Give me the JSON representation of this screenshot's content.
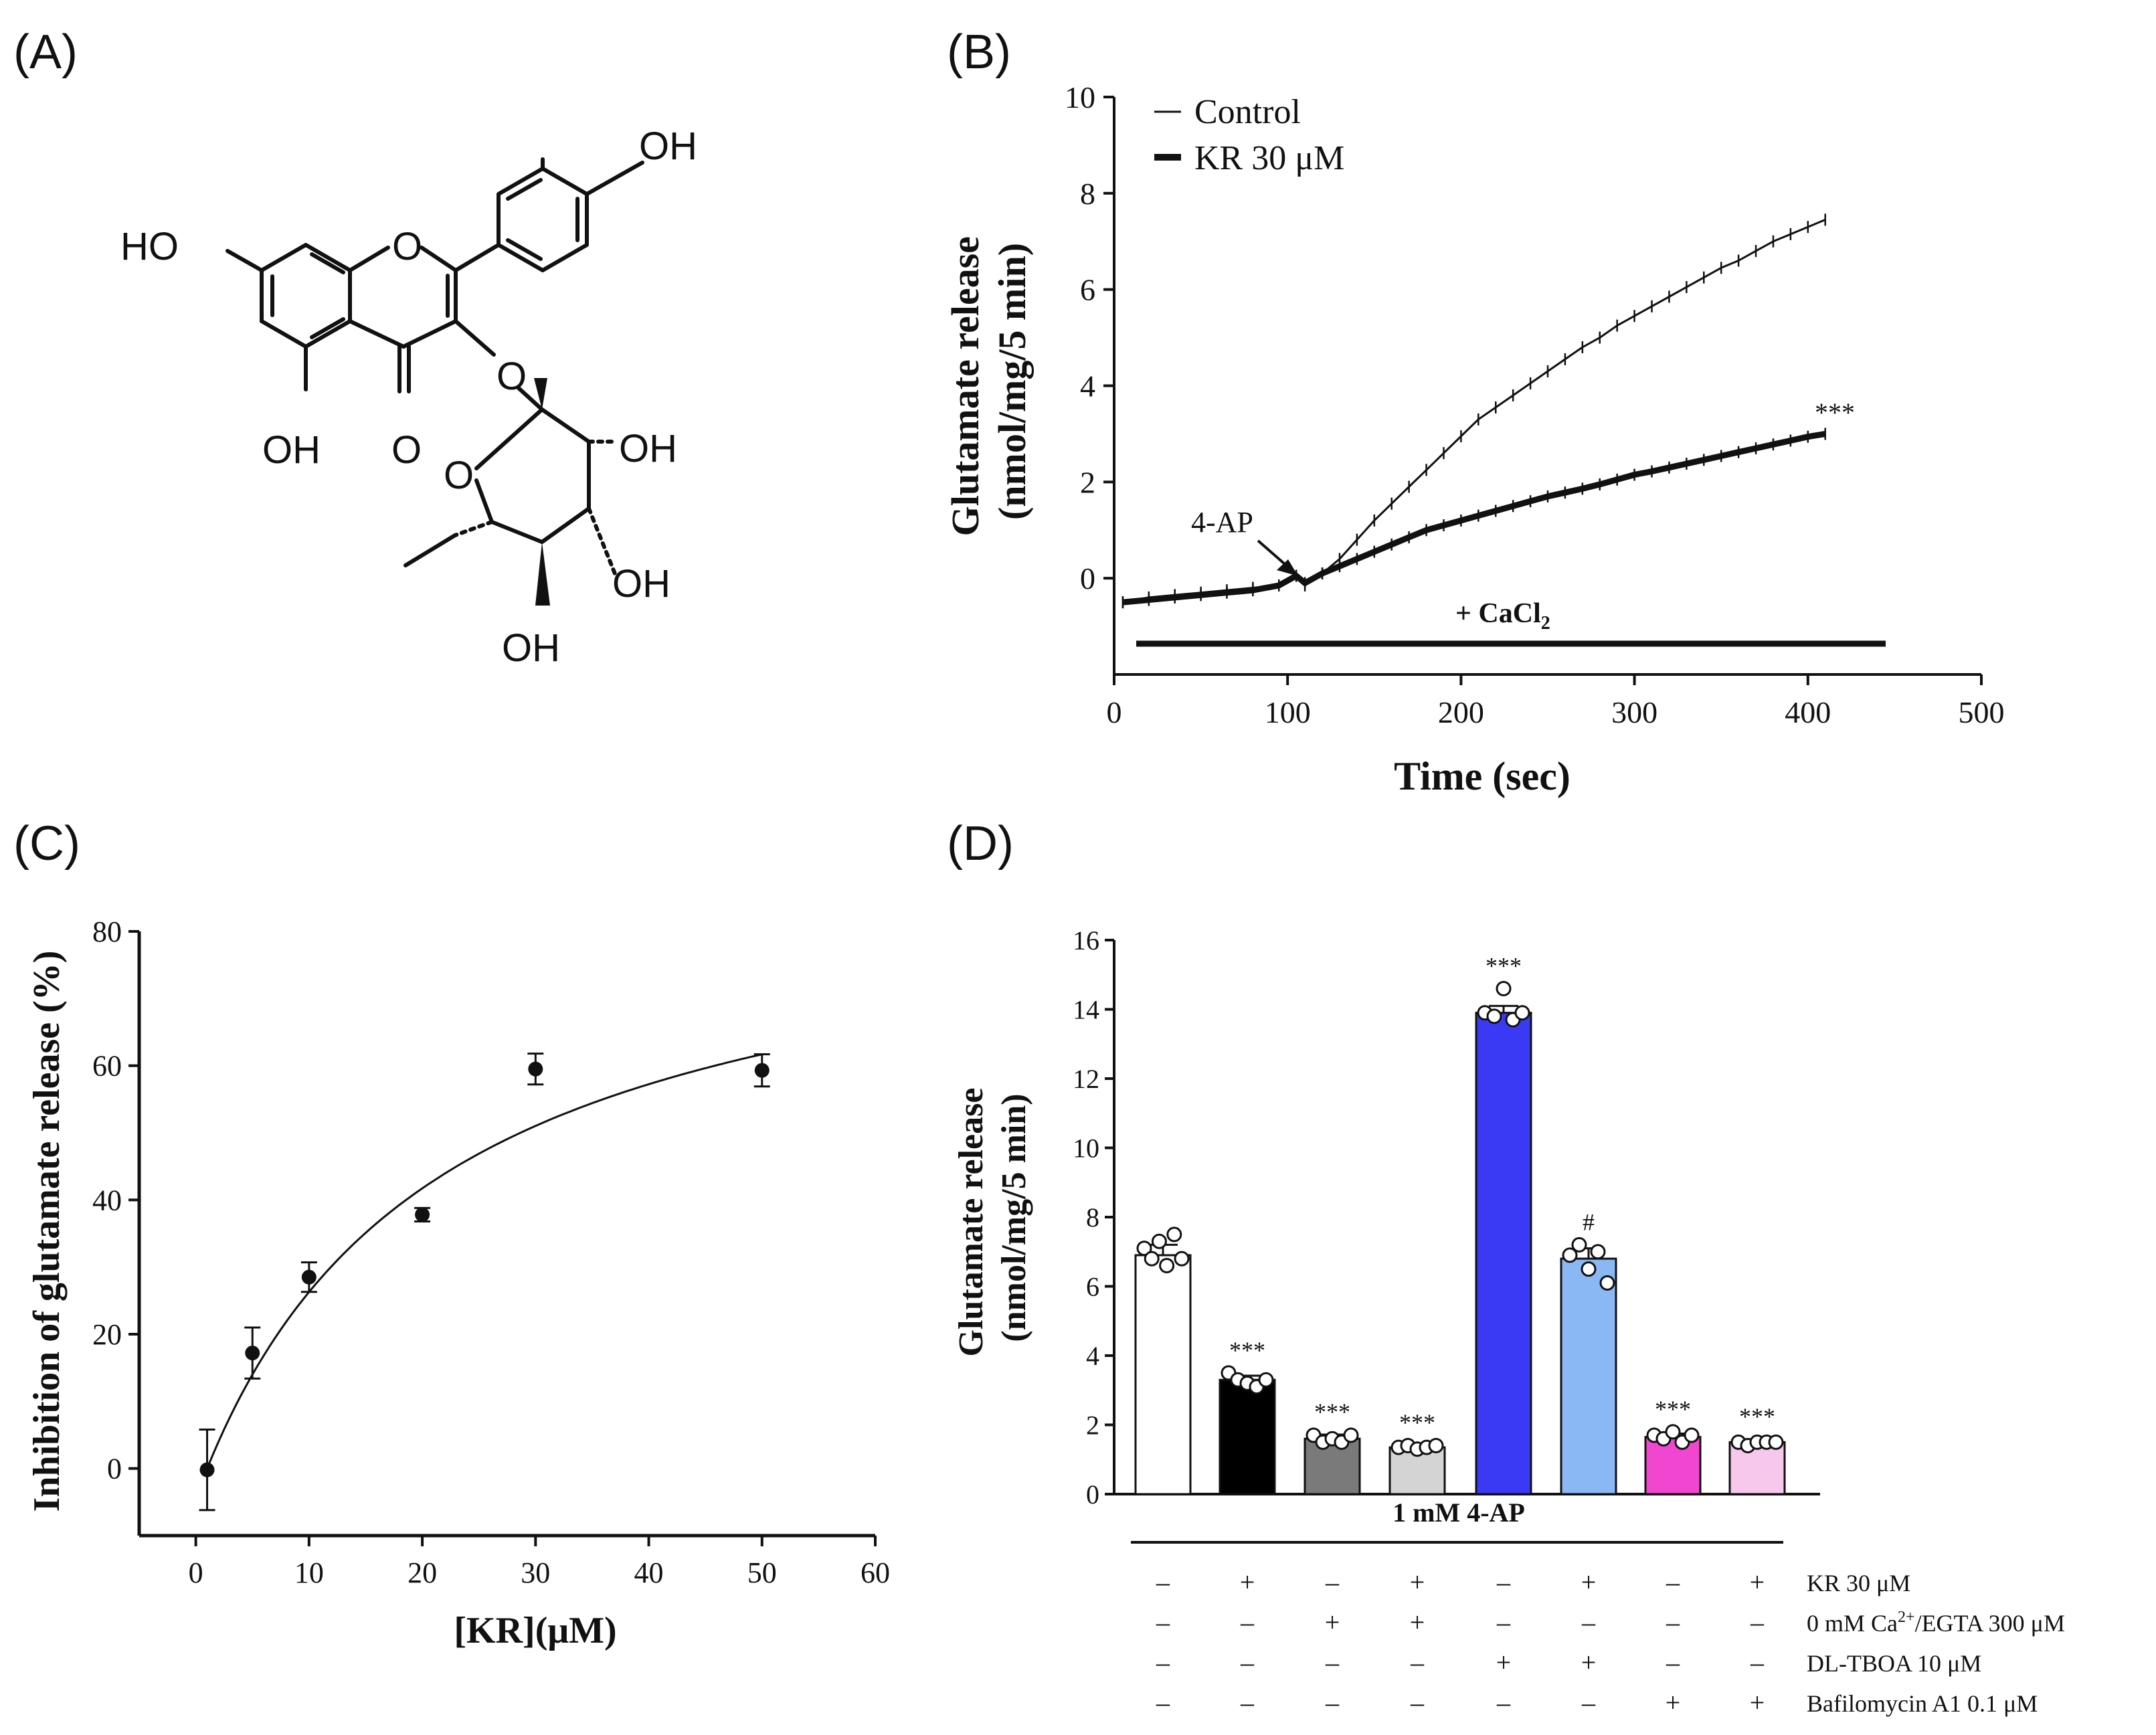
{
  "panels": {
    "a": "(A)",
    "b": "(B)",
    "c": "(C)",
    "d": "(D)"
  },
  "structure": {
    "atom_labels": [
      "OH",
      "HO",
      "O",
      "O",
      "O",
      "OH",
      "O",
      "OH",
      "OH",
      "OH"
    ]
  },
  "chart_data": [
    {
      "id": "B",
      "type": "line",
      "xlabel": "Time (sec)",
      "ylabel": [
        "Glutamate release",
        "(nmol/mg/5 min)"
      ],
      "xlim": [
        0,
        500
      ],
      "ylim": [
        -2,
        10
      ],
      "xticks": [
        "0",
        "100",
        "200",
        "300",
        "400",
        "500"
      ],
      "yticks": [
        "0",
        "2",
        "4",
        "6",
        "8",
        "10"
      ],
      "legend": [
        {
          "name": "Control",
          "weight": "thin"
        },
        {
          "name": "KR 30 μM",
          "weight": "thick"
        }
      ],
      "annotations": {
        "arrow_label": "4-AP",
        "bar_label_prefix": "+ CaCl",
        "bar_label_sub": "2",
        "significance": "***"
      },
      "series": [
        {
          "name": "Control",
          "x": [
            5,
            20,
            35,
            50,
            65,
            80,
            95,
            105,
            110,
            120,
            130,
            140,
            150,
            160,
            170,
            180,
            190,
            200,
            210,
            220,
            230,
            240,
            250,
            260,
            270,
            280,
            290,
            300,
            310,
            320,
            330,
            340,
            350,
            360,
            370,
            380,
            390,
            400,
            410
          ],
          "y": [
            -0.5,
            -0.4,
            -0.35,
            -0.3,
            -0.25,
            -0.2,
            -0.15,
            0.05,
            -0.15,
            0.1,
            0.4,
            0.8,
            1.2,
            1.55,
            1.9,
            2.25,
            2.6,
            2.95,
            3.3,
            3.55,
            3.8,
            4.05,
            4.3,
            4.55,
            4.8,
            5.0,
            5.25,
            5.45,
            5.65,
            5.85,
            6.05,
            6.25,
            6.45,
            6.6,
            6.8,
            7.0,
            7.15,
            7.3,
            7.45
          ]
        },
        {
          "name": "KR 30 μM",
          "x": [
            5,
            20,
            35,
            50,
            65,
            80,
            95,
            105,
            110,
            120,
            130,
            140,
            150,
            160,
            170,
            180,
            190,
            200,
            210,
            220,
            230,
            240,
            250,
            260,
            270,
            280,
            290,
            300,
            310,
            320,
            330,
            340,
            350,
            360,
            370,
            380,
            390,
            400,
            410
          ],
          "y": [
            -0.5,
            -0.45,
            -0.4,
            -0.35,
            -0.3,
            -0.25,
            -0.15,
            0.05,
            -0.1,
            0.1,
            0.25,
            0.4,
            0.55,
            0.7,
            0.85,
            1.0,
            1.1,
            1.2,
            1.3,
            1.4,
            1.5,
            1.6,
            1.7,
            1.78,
            1.86,
            1.95,
            2.05,
            2.15,
            2.22,
            2.3,
            2.38,
            2.46,
            2.54,
            2.62,
            2.7,
            2.78,
            2.86,
            2.94,
            3.0
          ]
        }
      ]
    },
    {
      "id": "C",
      "type": "scatter",
      "xlabel": "[KR](μM)",
      "ylabel": "Inhibition of glutamate release (%)",
      "xlim": [
        -5,
        60
      ],
      "ylim": [
        -10,
        80
      ],
      "xticks": [
        "0",
        "10",
        "20",
        "30",
        "40",
        "50",
        "60"
      ],
      "yticks": [
        "0",
        "20",
        "40",
        "60",
        "80"
      ],
      "points": [
        {
          "x": 1,
          "y": -0.2,
          "err": 6
        },
        {
          "x": 5,
          "y": 17.2,
          "err": 3.8
        },
        {
          "x": 10,
          "y": 28.5,
          "err": 2.2
        },
        {
          "x": 20,
          "y": 37.8,
          "err": 1.0
        },
        {
          "x": 30,
          "y": 59.5,
          "err": 2.3
        },
        {
          "x": 50,
          "y": 59.3,
          "err": 2.4
        }
      ],
      "fit": {
        "model": "hyperbolic",
        "vmax": 88.5,
        "k": 21.3,
        "x0": 1
      }
    },
    {
      "id": "D",
      "type": "bar",
      "ylabel": [
        "Glutamate release",
        "(nmol/mg/5 min)"
      ],
      "ylim": [
        0,
        16
      ],
      "yticks": [
        "0",
        "2",
        "4",
        "6",
        "8",
        "10",
        "12",
        "14",
        "16"
      ],
      "group_label": "1 mM 4-AP",
      "values": [
        6.9,
        3.3,
        1.6,
        1.35,
        13.9,
        6.8,
        1.65,
        1.5
      ],
      "errors": [
        0.3,
        0.12,
        0.12,
        0.06,
        0.2,
        0.3,
        0.1,
        0.08
      ],
      "colors": [
        "#ffffff",
        "#000000",
        "#7a7a7a",
        "#d4d4d4",
        "#3a3af5",
        "#8ab8f5",
        "#f046d0",
        "#f7c8ec"
      ],
      "dots": [
        [
          7.1,
          6.8,
          7.3,
          6.6,
          7.5,
          6.8
        ],
        [
          3.5,
          3.3,
          3.2,
          3.1,
          3.3
        ],
        [
          1.7,
          1.5,
          1.6,
          1.5,
          1.7
        ],
        [
          1.35,
          1.4,
          1.3,
          1.35,
          1.4
        ],
        [
          13.9,
          13.8,
          14.6,
          13.7,
          13.9
        ],
        [
          6.9,
          7.2,
          6.5,
          7.0,
          6.1
        ],
        [
          1.7,
          1.6,
          1.8,
          1.5,
          1.7
        ],
        [
          1.5,
          1.4,
          1.5,
          1.5,
          1.5
        ]
      ],
      "significance": [
        "",
        "***",
        "***",
        "***",
        "***",
        "#",
        "***",
        "***"
      ],
      "conditions": [
        {
          "label": "KR 30 μM",
          "marks": [
            "–",
            "+",
            "–",
            "+",
            "–",
            "+",
            "–",
            "+"
          ]
        },
        {
          "label_prefix": "0 mM Ca",
          "label_sup": "2+",
          "label_suffix": "/EGTA 300 μM",
          "marks": [
            "–",
            "–",
            "+",
            "+",
            "–",
            "–",
            "–",
            "–"
          ]
        },
        {
          "label": "DL-TBOA 10 μM",
          "marks": [
            "–",
            "–",
            "–",
            "–",
            "+",
            "+",
            "–",
            "–"
          ]
        },
        {
          "label": "Bafilomycin A1 0.1 μM",
          "marks": [
            "–",
            "–",
            "–",
            "–",
            "–",
            "–",
            "+",
            "+"
          ]
        }
      ]
    }
  ]
}
